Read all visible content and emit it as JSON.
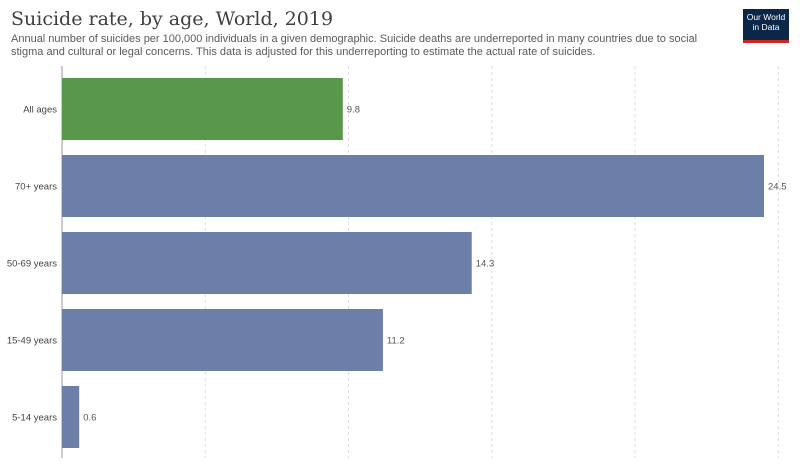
{
  "header": {
    "title": "Suicide rate, by age, World, 2019",
    "subtitle": "Annual number of suicides per 100,000 individuals in a given demographic. Suicide deaths are underreported in many countries due to social stigma and cultural or legal concerns. This data is adjusted for this underreporting to estimate the actual rate of suicides.",
    "logo_line1": "Our World",
    "logo_line2": "in Data"
  },
  "colors": {
    "highlight": "#59984a",
    "bar": "#6b7fa8",
    "grid": "#dddddd",
    "axis": "#999999"
  },
  "chart_data": {
    "type": "bar",
    "orientation": "horizontal",
    "categories": [
      "All ages",
      "70+ years",
      "50-69 years",
      "15-49 years",
      "5-14 years"
    ],
    "values": [
      9.8,
      24.5,
      14.3,
      11.2,
      0.6
    ],
    "value_labels": [
      "9.8",
      "24.5",
      "14.3",
      "11.2",
      "0.6"
    ],
    "highlighted": [
      "All ages"
    ],
    "xlim": [
      0,
      25
    ],
    "grid": true
  }
}
